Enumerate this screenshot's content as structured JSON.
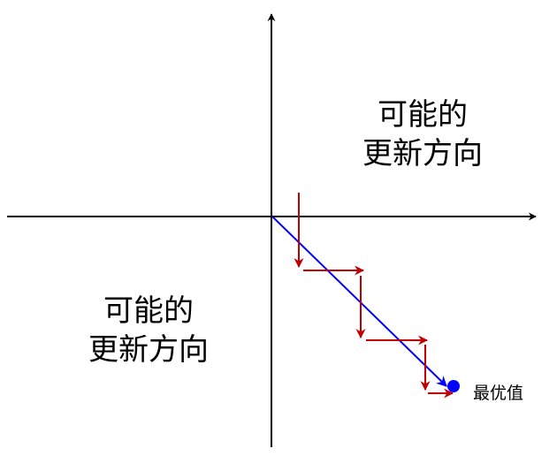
{
  "region_top_right": {
    "line1": "可能的",
    "line2": "更新方向"
  },
  "region_bottom_left": {
    "line1": "可能的",
    "line2": "更新方向"
  },
  "optimum_label": "最优值",
  "colors": {
    "axis": "#000000",
    "direct_path": "#0000ff",
    "zigzag_path": "#c00000",
    "optimum_point": "#0000ff"
  }
}
